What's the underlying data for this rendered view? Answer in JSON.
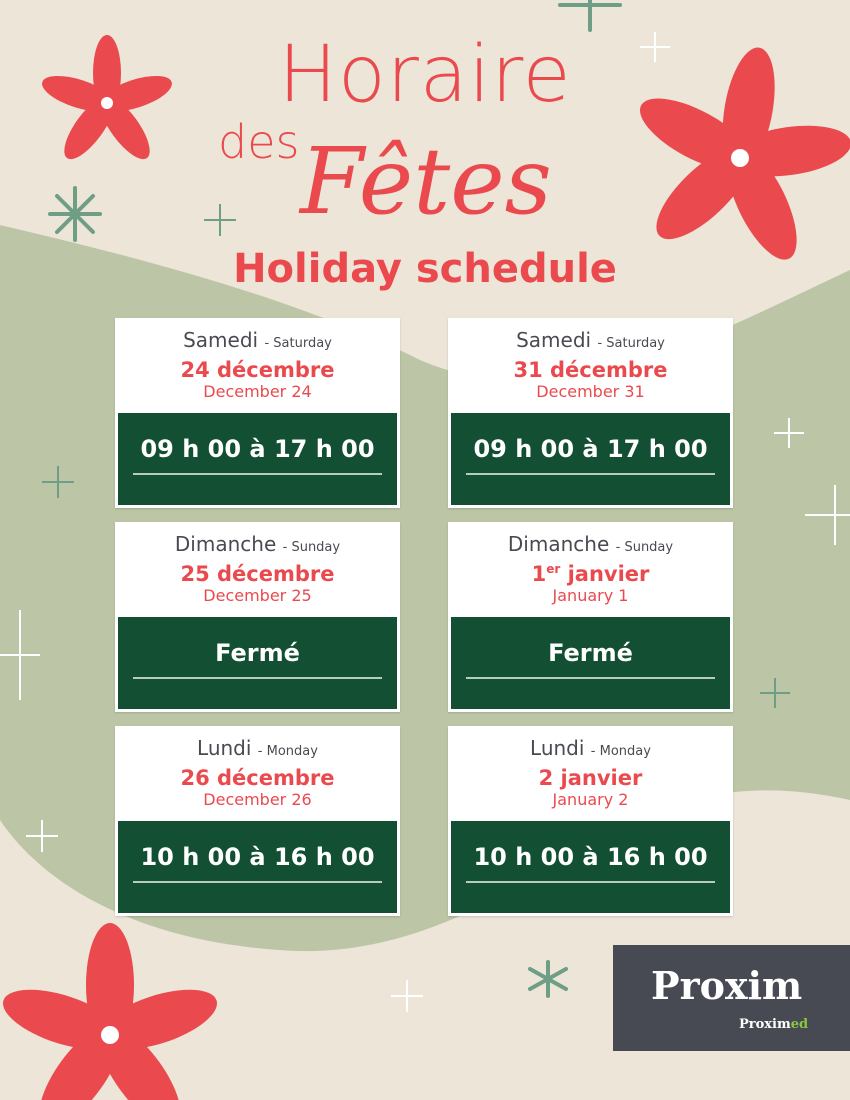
{
  "title": {
    "line1": "Horaire",
    "line2a": "des",
    "line2b": "Fêtes",
    "subtitle": "Holiday schedule"
  },
  "colors": {
    "accent": "#ea4a4e",
    "card_dark": "#124f33",
    "background": "#ece5d8",
    "wave": "#bcc6a6"
  },
  "cards": [
    {
      "day_fr": "Samedi",
      "day_en": "- Saturday",
      "date_fr": "24 décembre",
      "date_sup": "",
      "date_fr_rest": "",
      "date_en": "December 24",
      "hours": "09 h 00 à 17 h 00"
    },
    {
      "day_fr": "Samedi",
      "day_en": "- Saturday",
      "date_fr": "31 décembre",
      "date_sup": "",
      "date_fr_rest": "",
      "date_en": "December 31",
      "hours": "09 h 00 à 17 h 00"
    },
    {
      "day_fr": "Dimanche",
      "day_en": "- Sunday",
      "date_fr": "25 décembre",
      "date_sup": "",
      "date_fr_rest": "",
      "date_en": "December 25",
      "hours": "Fermé"
    },
    {
      "day_fr": "Dimanche",
      "day_en": "- Sunday",
      "date_fr": "1",
      "date_sup": "er",
      "date_fr_rest": " janvier",
      "date_en": "January 1",
      "hours": "Fermé"
    },
    {
      "day_fr": "Lundi",
      "day_en": "- Monday",
      "date_fr": "26 décembre",
      "date_sup": "",
      "date_fr_rest": "",
      "date_en": "December 26",
      "hours": "10 h 00 à 16 h 00"
    },
    {
      "day_fr": "Lundi",
      "day_en": "- Monday",
      "date_fr": "2 janvier",
      "date_sup": "",
      "date_fr_rest": "",
      "date_en": "January 2",
      "hours": "10 h 00 à 16 h 00"
    }
  ],
  "logo": {
    "brand": "Proxim",
    "sub_a": "Pro",
    "sub_b": "xim",
    "sub_c": "ed"
  }
}
